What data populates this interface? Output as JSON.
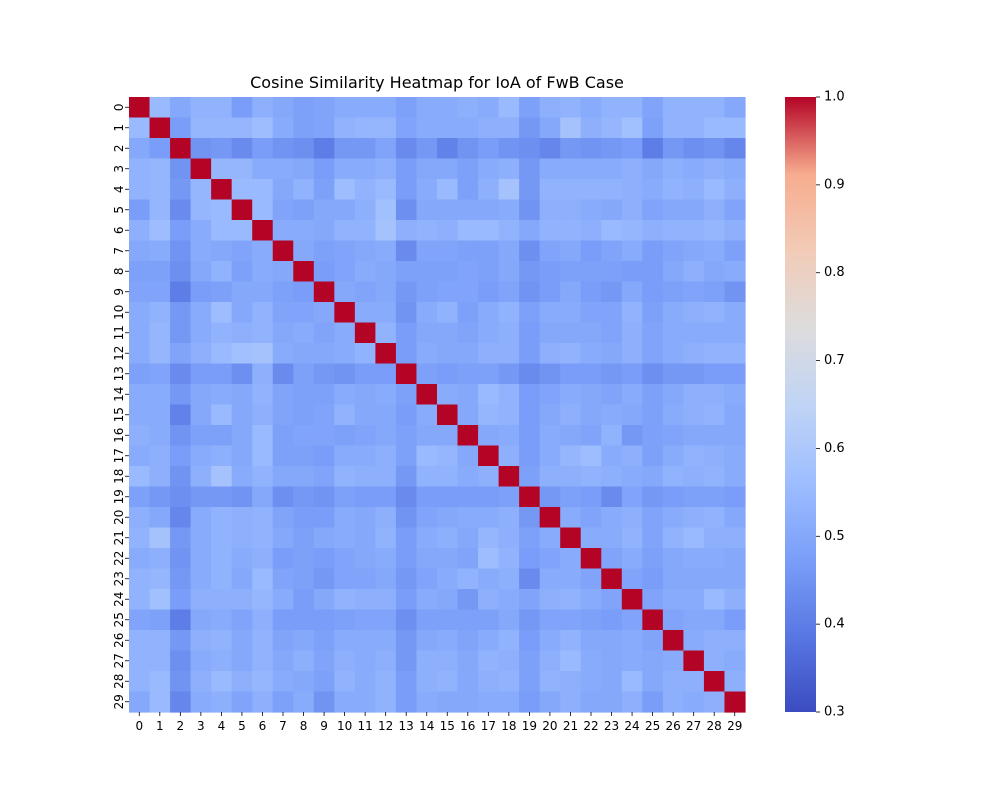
{
  "chart_data": {
    "type": "heatmap",
    "title": "Cosine Similarity Heatmap for IoA of FwB Case",
    "xlabel": "",
    "ylabel": "",
    "x_tick_labels": [
      "0",
      "1",
      "2",
      "3",
      "4",
      "5",
      "6",
      "7",
      "8",
      "9",
      "10",
      "11",
      "12",
      "13",
      "14",
      "15",
      "16",
      "17",
      "18",
      "19",
      "20",
      "21",
      "22",
      "23",
      "24",
      "25",
      "26",
      "27",
      "28",
      "29"
    ],
    "y_tick_labels": [
      "0",
      "1",
      "2",
      "3",
      "4",
      "5",
      "6",
      "7",
      "8",
      "9",
      "10",
      "11",
      "12",
      "13",
      "14",
      "15",
      "16",
      "17",
      "18",
      "19",
      "20",
      "21",
      "22",
      "23",
      "24",
      "25",
      "26",
      "27",
      "28",
      "29"
    ],
    "colorbar": {
      "min": 0.3,
      "max": 1.0,
      "ticks": [
        0.3,
        0.4,
        0.5,
        0.6,
        0.7,
        0.8,
        0.9,
        1.0
      ],
      "tick_labels": [
        "0.3",
        "0.4",
        "0.5",
        "0.6",
        "0.7",
        "0.8",
        "0.9",
        "1.0"
      ],
      "colormap": "coolwarm"
    },
    "matrix": [
      [
        1.0,
        0.55,
        0.5,
        0.53,
        0.53,
        0.47,
        0.52,
        0.5,
        0.48,
        0.49,
        0.51,
        0.51,
        0.51,
        0.48,
        0.51,
        0.51,
        0.52,
        0.51,
        0.55,
        0.48,
        0.52,
        0.53,
        0.51,
        0.53,
        0.53,
        0.49,
        0.53,
        0.53,
        0.53,
        0.5
      ],
      [
        0.55,
        1.0,
        0.47,
        0.54,
        0.54,
        0.54,
        0.56,
        0.51,
        0.48,
        0.49,
        0.53,
        0.54,
        0.54,
        0.49,
        0.51,
        0.51,
        0.51,
        0.52,
        0.52,
        0.46,
        0.5,
        0.58,
        0.52,
        0.54,
        0.57,
        0.48,
        0.53,
        0.53,
        0.55,
        0.55
      ],
      [
        0.5,
        0.47,
        1.0,
        0.45,
        0.46,
        0.43,
        0.47,
        0.45,
        0.44,
        0.4,
        0.46,
        0.46,
        0.49,
        0.43,
        0.46,
        0.41,
        0.45,
        0.47,
        0.45,
        0.44,
        0.42,
        0.46,
        0.45,
        0.46,
        0.47,
        0.4,
        0.46,
        0.44,
        0.45,
        0.42
      ],
      [
        0.53,
        0.54,
        0.45,
        1.0,
        0.54,
        0.54,
        0.51,
        0.51,
        0.5,
        0.47,
        0.51,
        0.51,
        0.52,
        0.47,
        0.5,
        0.5,
        0.48,
        0.51,
        0.52,
        0.46,
        0.51,
        0.51,
        0.51,
        0.51,
        0.52,
        0.5,
        0.52,
        0.51,
        0.52,
        0.51
      ],
      [
        0.53,
        0.54,
        0.46,
        0.54,
        1.0,
        0.55,
        0.55,
        0.5,
        0.53,
        0.48,
        0.56,
        0.53,
        0.55,
        0.47,
        0.51,
        0.55,
        0.48,
        0.52,
        0.58,
        0.46,
        0.53,
        0.53,
        0.53,
        0.53,
        0.52,
        0.51,
        0.53,
        0.52,
        0.55,
        0.52
      ],
      [
        0.47,
        0.54,
        0.43,
        0.54,
        0.55,
        1.0,
        0.55,
        0.49,
        0.48,
        0.5,
        0.5,
        0.52,
        0.57,
        0.44,
        0.5,
        0.5,
        0.5,
        0.5,
        0.51,
        0.45,
        0.52,
        0.52,
        0.51,
        0.5,
        0.52,
        0.49,
        0.5,
        0.5,
        0.52,
        0.49
      ],
      [
        0.52,
        0.56,
        0.47,
        0.51,
        0.55,
        0.55,
        1.0,
        0.51,
        0.51,
        0.5,
        0.53,
        0.53,
        0.58,
        0.52,
        0.53,
        0.52,
        0.55,
        0.55,
        0.53,
        0.5,
        0.53,
        0.53,
        0.52,
        0.55,
        0.54,
        0.52,
        0.53,
        0.53,
        0.54,
        0.52
      ],
      [
        0.5,
        0.51,
        0.45,
        0.51,
        0.5,
        0.49,
        0.51,
        1.0,
        0.5,
        0.48,
        0.49,
        0.5,
        0.51,
        0.43,
        0.49,
        0.49,
        0.48,
        0.48,
        0.5,
        0.44,
        0.49,
        0.5,
        0.47,
        0.49,
        0.51,
        0.47,
        0.49,
        0.5,
        0.51,
        0.48
      ],
      [
        0.48,
        0.48,
        0.44,
        0.5,
        0.53,
        0.48,
        0.51,
        0.5,
        1.0,
        0.47,
        0.49,
        0.51,
        0.5,
        0.48,
        0.48,
        0.48,
        0.49,
        0.48,
        0.5,
        0.46,
        0.47,
        0.48,
        0.48,
        0.48,
        0.47,
        0.47,
        0.5,
        0.52,
        0.5,
        0.51
      ],
      [
        0.49,
        0.49,
        0.4,
        0.47,
        0.48,
        0.5,
        0.5,
        0.48,
        0.47,
        1.0,
        0.5,
        0.49,
        0.5,
        0.46,
        0.48,
        0.49,
        0.49,
        0.47,
        0.49,
        0.45,
        0.47,
        0.5,
        0.47,
        0.46,
        0.5,
        0.47,
        0.48,
        0.49,
        0.48,
        0.45
      ],
      [
        0.51,
        0.53,
        0.46,
        0.51,
        0.56,
        0.5,
        0.53,
        0.49,
        0.49,
        0.5,
        1.0,
        0.51,
        0.51,
        0.45,
        0.51,
        0.53,
        0.48,
        0.51,
        0.53,
        0.48,
        0.51,
        0.51,
        0.49,
        0.49,
        0.53,
        0.48,
        0.51,
        0.52,
        0.53,
        0.51
      ],
      [
        0.51,
        0.54,
        0.46,
        0.51,
        0.53,
        0.52,
        0.53,
        0.5,
        0.51,
        0.49,
        0.51,
        1.0,
        0.53,
        0.47,
        0.5,
        0.5,
        0.49,
        0.51,
        0.52,
        0.47,
        0.5,
        0.5,
        0.5,
        0.49,
        0.52,
        0.49,
        0.51,
        0.51,
        0.51,
        0.51
      ],
      [
        0.51,
        0.54,
        0.49,
        0.52,
        0.55,
        0.57,
        0.58,
        0.51,
        0.5,
        0.5,
        0.51,
        0.53,
        1.0,
        0.47,
        0.51,
        0.5,
        0.5,
        0.52,
        0.52,
        0.47,
        0.52,
        0.53,
        0.51,
        0.5,
        0.52,
        0.49,
        0.51,
        0.52,
        0.53,
        0.53
      ],
      [
        0.48,
        0.49,
        0.43,
        0.47,
        0.47,
        0.44,
        0.52,
        0.43,
        0.48,
        0.46,
        0.45,
        0.47,
        0.47,
        1.0,
        0.48,
        0.47,
        0.48,
        0.48,
        0.46,
        0.43,
        0.45,
        0.47,
        0.47,
        0.46,
        0.47,
        0.44,
        0.46,
        0.46,
        0.47,
        0.47
      ],
      [
        0.51,
        0.51,
        0.46,
        0.5,
        0.51,
        0.5,
        0.53,
        0.49,
        0.48,
        0.48,
        0.51,
        0.5,
        0.51,
        0.48,
        1.0,
        0.51,
        0.5,
        0.55,
        0.53,
        0.47,
        0.49,
        0.51,
        0.5,
        0.49,
        0.51,
        0.48,
        0.5,
        0.52,
        0.52,
        0.51
      ],
      [
        0.51,
        0.51,
        0.41,
        0.5,
        0.55,
        0.5,
        0.52,
        0.49,
        0.48,
        0.49,
        0.53,
        0.5,
        0.5,
        0.47,
        0.51,
        1.0,
        0.5,
        0.54,
        0.53,
        0.47,
        0.5,
        0.52,
        0.5,
        0.51,
        0.5,
        0.48,
        0.51,
        0.52,
        0.53,
        0.5
      ],
      [
        0.52,
        0.51,
        0.45,
        0.48,
        0.48,
        0.5,
        0.55,
        0.48,
        0.49,
        0.49,
        0.48,
        0.49,
        0.5,
        0.48,
        0.5,
        0.5,
        1.0,
        0.5,
        0.51,
        0.47,
        0.51,
        0.5,
        0.49,
        0.53,
        0.46,
        0.48,
        0.49,
        0.5,
        0.5,
        0.5
      ],
      [
        0.51,
        0.52,
        0.47,
        0.51,
        0.52,
        0.5,
        0.55,
        0.48,
        0.48,
        0.47,
        0.51,
        0.51,
        0.52,
        0.48,
        0.55,
        0.54,
        0.5,
        1.0,
        0.52,
        0.47,
        0.51,
        0.54,
        0.56,
        0.51,
        0.52,
        0.48,
        0.51,
        0.53,
        0.52,
        0.51
      ],
      [
        0.55,
        0.52,
        0.45,
        0.52,
        0.58,
        0.51,
        0.53,
        0.5,
        0.5,
        0.49,
        0.53,
        0.52,
        0.52,
        0.46,
        0.53,
        0.53,
        0.51,
        0.52,
        1.0,
        0.48,
        0.52,
        0.52,
        0.53,
        0.52,
        0.51,
        0.5,
        0.53,
        0.52,
        0.53,
        0.51
      ],
      [
        0.48,
        0.46,
        0.44,
        0.46,
        0.46,
        0.45,
        0.5,
        0.44,
        0.46,
        0.45,
        0.48,
        0.47,
        0.47,
        0.43,
        0.47,
        0.47,
        0.47,
        0.47,
        0.48,
        1.0,
        0.46,
        0.48,
        0.47,
        0.43,
        0.49,
        0.46,
        0.47,
        0.48,
        0.48,
        0.47
      ],
      [
        0.52,
        0.5,
        0.42,
        0.51,
        0.53,
        0.52,
        0.53,
        0.49,
        0.47,
        0.47,
        0.51,
        0.5,
        0.52,
        0.45,
        0.49,
        0.5,
        0.51,
        0.51,
        0.52,
        0.46,
        1.0,
        0.51,
        0.49,
        0.51,
        0.52,
        0.49,
        0.51,
        0.52,
        0.53,
        0.5
      ],
      [
        0.53,
        0.58,
        0.46,
        0.51,
        0.53,
        0.52,
        0.53,
        0.5,
        0.48,
        0.5,
        0.51,
        0.5,
        0.53,
        0.47,
        0.51,
        0.52,
        0.5,
        0.54,
        0.52,
        0.48,
        0.51,
        1.0,
        0.51,
        0.51,
        0.53,
        0.49,
        0.53,
        0.55,
        0.52,
        0.52
      ],
      [
        0.51,
        0.52,
        0.45,
        0.51,
        0.53,
        0.51,
        0.52,
        0.47,
        0.48,
        0.47,
        0.49,
        0.5,
        0.51,
        0.47,
        0.5,
        0.5,
        0.49,
        0.56,
        0.53,
        0.47,
        0.49,
        0.51,
        1.0,
        0.49,
        0.51,
        0.48,
        0.5,
        0.51,
        0.51,
        0.5
      ],
      [
        0.53,
        0.54,
        0.46,
        0.51,
        0.53,
        0.5,
        0.55,
        0.49,
        0.48,
        0.46,
        0.49,
        0.49,
        0.5,
        0.46,
        0.49,
        0.51,
        0.53,
        0.51,
        0.52,
        0.43,
        0.51,
        0.51,
        0.49,
        1.0,
        0.49,
        0.47,
        0.5,
        0.5,
        0.5,
        0.5
      ],
      [
        0.53,
        0.57,
        0.47,
        0.52,
        0.52,
        0.52,
        0.54,
        0.51,
        0.47,
        0.5,
        0.53,
        0.52,
        0.52,
        0.47,
        0.51,
        0.5,
        0.46,
        0.52,
        0.51,
        0.49,
        0.52,
        0.53,
        0.51,
        0.49,
        1.0,
        0.49,
        0.51,
        0.51,
        0.55,
        0.52
      ],
      [
        0.49,
        0.48,
        0.4,
        0.5,
        0.51,
        0.49,
        0.52,
        0.47,
        0.47,
        0.47,
        0.48,
        0.49,
        0.49,
        0.44,
        0.48,
        0.48,
        0.48,
        0.48,
        0.5,
        0.46,
        0.49,
        0.49,
        0.48,
        0.47,
        0.49,
        1.0,
        0.49,
        0.5,
        0.5,
        0.47
      ],
      [
        0.53,
        0.53,
        0.46,
        0.52,
        0.53,
        0.5,
        0.53,
        0.49,
        0.5,
        0.48,
        0.51,
        0.51,
        0.51,
        0.46,
        0.5,
        0.51,
        0.49,
        0.51,
        0.53,
        0.47,
        0.51,
        0.53,
        0.5,
        0.5,
        0.51,
        0.49,
        1.0,
        0.51,
        0.52,
        0.52
      ],
      [
        0.53,
        0.53,
        0.44,
        0.51,
        0.52,
        0.5,
        0.53,
        0.5,
        0.52,
        0.49,
        0.52,
        0.51,
        0.52,
        0.46,
        0.52,
        0.52,
        0.5,
        0.53,
        0.52,
        0.48,
        0.52,
        0.55,
        0.51,
        0.5,
        0.51,
        0.5,
        0.51,
        1.0,
        0.52,
        0.51
      ],
      [
        0.53,
        0.55,
        0.45,
        0.52,
        0.55,
        0.52,
        0.54,
        0.51,
        0.5,
        0.48,
        0.53,
        0.51,
        0.53,
        0.47,
        0.52,
        0.53,
        0.5,
        0.52,
        0.53,
        0.48,
        0.53,
        0.52,
        0.51,
        0.5,
        0.55,
        0.5,
        0.52,
        0.52,
        1.0,
        0.52
      ],
      [
        0.5,
        0.55,
        0.42,
        0.51,
        0.52,
        0.49,
        0.52,
        0.48,
        0.51,
        0.45,
        0.51,
        0.51,
        0.53,
        0.47,
        0.51,
        0.5,
        0.5,
        0.51,
        0.51,
        0.47,
        0.5,
        0.52,
        0.5,
        0.5,
        0.52,
        0.47,
        0.52,
        0.51,
        0.52,
        1.0
      ]
    ]
  }
}
